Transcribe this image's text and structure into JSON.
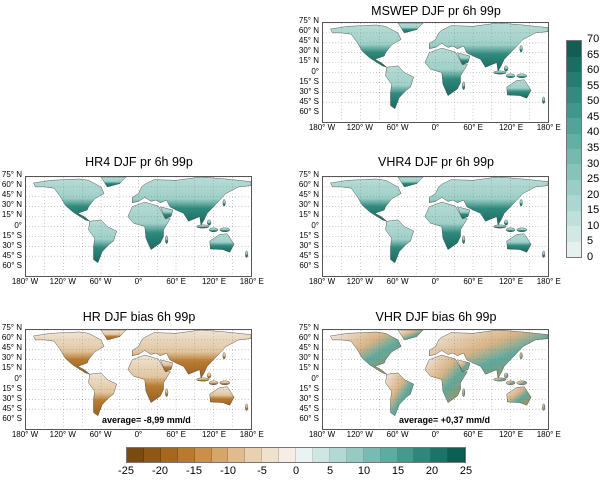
{
  "panels": [
    {
      "id": "mswep",
      "title": "MSWEP DJF pr 6h 99p",
      "kind": "precip"
    },
    {
      "id": "hr4",
      "title": "HR4 DJF pr 6h 99p",
      "kind": "precip"
    },
    {
      "id": "vhr4",
      "title": "VHR4 DJF pr 6h 99p",
      "kind": "precip"
    },
    {
      "id": "hr-bias",
      "title": "HR DJF bias 6h 99p",
      "kind": "bias-dry",
      "average": "average= -8,99 mm/d"
    },
    {
      "id": "vhr-bias",
      "title": "VHR DJF bias 6h 99p",
      "kind": "bias-mixed",
      "average": "average= +0,37 mm/d"
    }
  ],
  "lat_labels": [
    "75° N",
    "60° N",
    "45° N",
    "30° N",
    "15° N",
    "0°",
    "15° S",
    "30° S",
    "45° S",
    "60° S"
  ],
  "lon_labels": [
    "180° W",
    "120° W",
    "60° W",
    "0°",
    "60° E",
    "120° E",
    "180° E"
  ],
  "precip_colorbar": {
    "labels": [
      "0",
      "5",
      "10",
      "15",
      "20",
      "25",
      "30",
      "35",
      "40",
      "45",
      "50",
      "55",
      "60",
      "65",
      "70"
    ],
    "colors": [
      "#e6f1ef",
      "#d2e8e4",
      "#bfdfda",
      "#acd6cf",
      "#9acdc5",
      "#88c3ba",
      "#76b9af",
      "#64afa4",
      "#53a398",
      "#43968b",
      "#35897e",
      "#287b70",
      "#1d6c62",
      "#135d54",
      "#0b4e46"
    ]
  },
  "bias_colorbar": {
    "labels": [
      "-25",
      "-20",
      "-15",
      "-10",
      "-5",
      "0",
      "5",
      "10",
      "15",
      "20",
      "25"
    ],
    "colors": [
      "#7a4a12",
      "#8c5718",
      "#a4691f",
      "#b87b2c",
      "#c8904a",
      "#d4a66c",
      "#dfbb8e",
      "#e9d0b0",
      "#f0e1cc",
      "#f6eee5",
      "#eaf3f1",
      "#cfe7e3",
      "#b2d9d3",
      "#96cbc3",
      "#79bbb2",
      "#5eaba0",
      "#45998d",
      "#2f877b",
      "#1d7367",
      "#0e5e53"
    ]
  }
}
